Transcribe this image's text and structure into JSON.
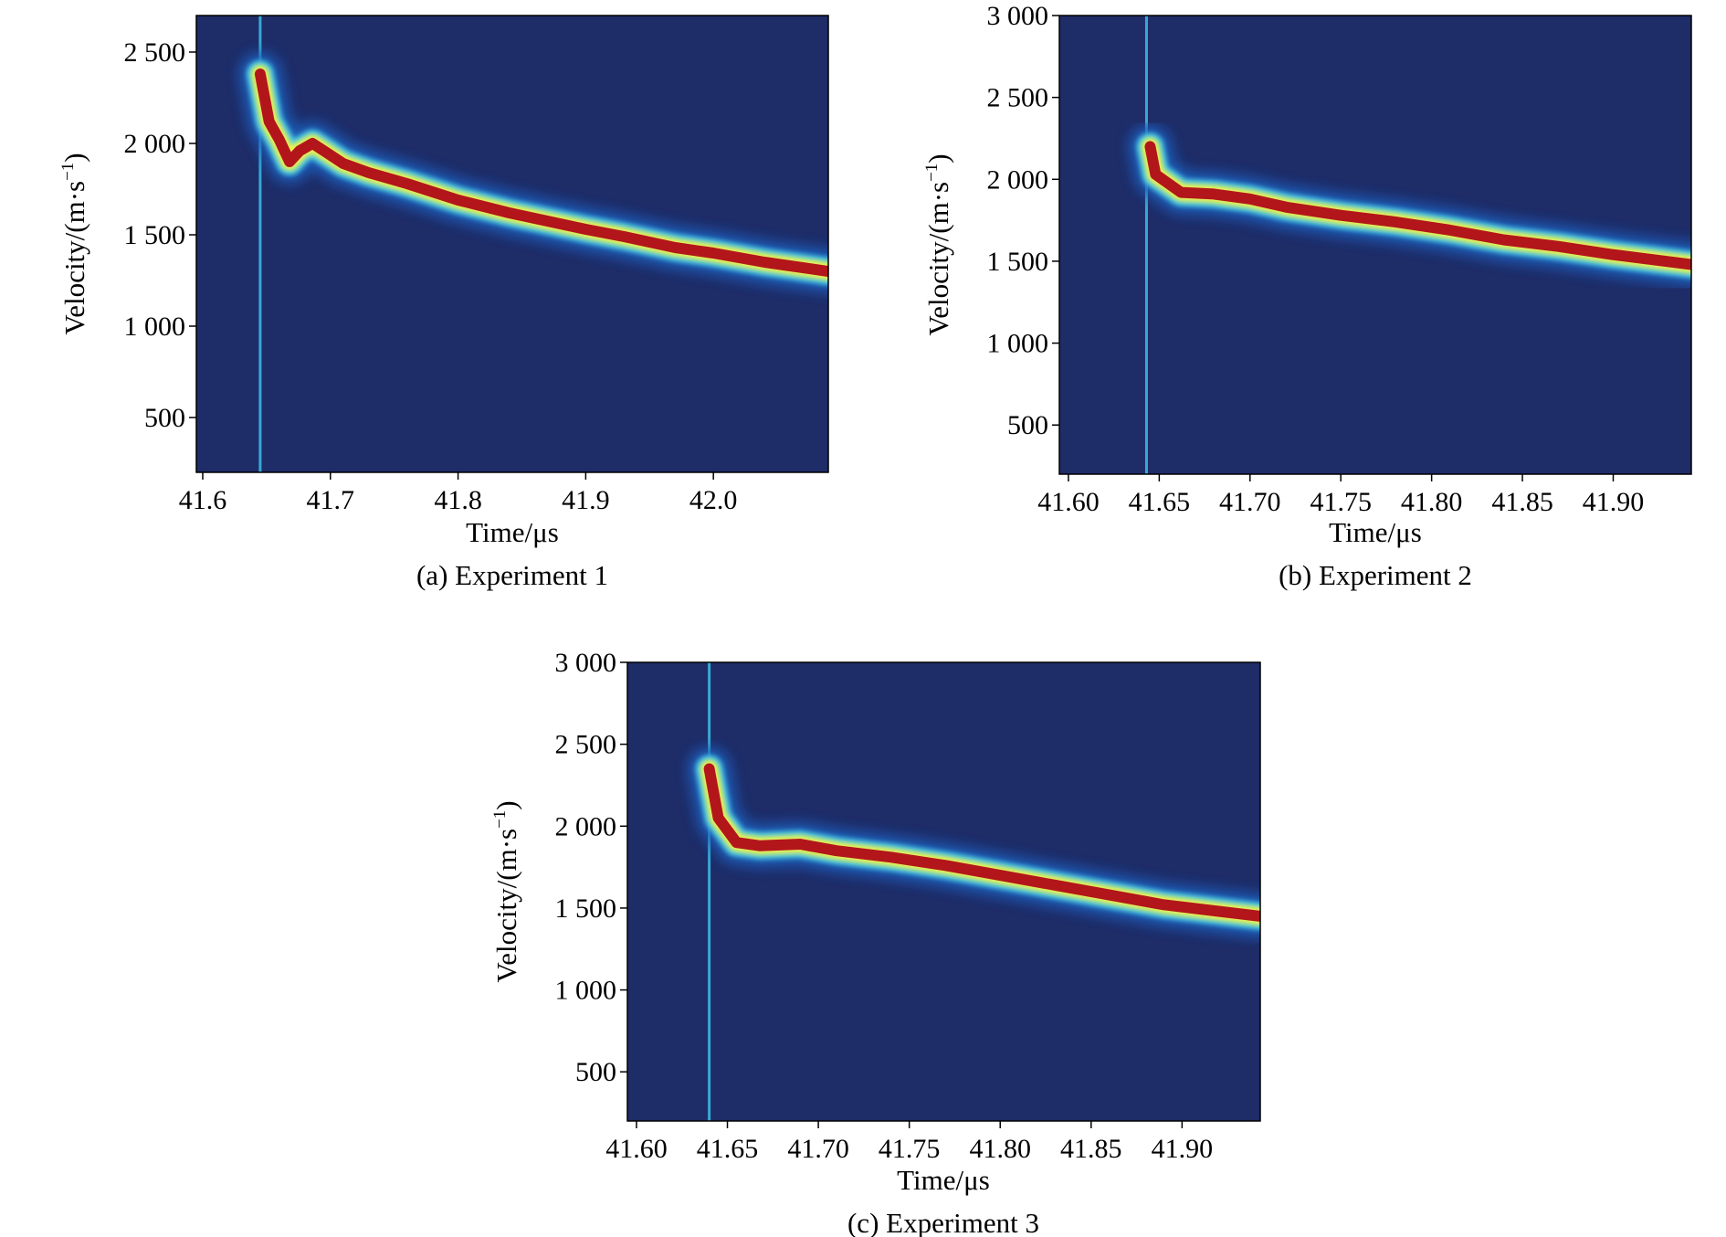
{
  "chart_data": [
    {
      "type": "heatmap",
      "caption": "(a) Experiment 1",
      "xlabel": "Time/μs",
      "ylabel_main": "Velocity/(m·s",
      "ylabel_sup": "−1",
      "ylabel_close": ")",
      "xlim": [
        41.595,
        42.09
      ],
      "ylim": [
        200,
        2700
      ],
      "xticks": [
        41.6,
        41.7,
        41.8,
        41.9,
        42.0
      ],
      "xtick_labels": [
        "41.6",
        "41.7",
        "41.8",
        "41.9",
        "42.0"
      ],
      "yticks": [
        500,
        1000,
        1500,
        2000,
        2500
      ],
      "ytick_labels": [
        "500",
        "1 000",
        "1 500",
        "2 000",
        "2 500"
      ],
      "colormap": [
        "#1e2c68",
        "#1f5bb8",
        "#3fc7ee",
        "#f2f24a",
        "#b2161b"
      ],
      "ridge": [
        [
          41.645,
          2380
        ],
        [
          41.652,
          2120
        ],
        [
          41.66,
          2020
        ],
        [
          41.668,
          1900
        ],
        [
          41.676,
          1960
        ],
        [
          41.686,
          2000
        ],
        [
          41.697,
          1950
        ],
        [
          41.71,
          1890
        ],
        [
          41.73,
          1840
        ],
        [
          41.76,
          1780
        ],
        [
          41.8,
          1690
        ],
        [
          41.84,
          1620
        ],
        [
          41.88,
          1560
        ],
        [
          41.9,
          1530
        ],
        [
          41.93,
          1490
        ],
        [
          41.97,
          1430
        ],
        [
          42.0,
          1400
        ],
        [
          42.04,
          1350
        ],
        [
          42.09,
          1300
        ]
      ],
      "streak": {
        "x": 41.645,
        "v_from": 200,
        "v_to": 2700
      }
    },
    {
      "type": "heatmap",
      "caption": "(b) Experiment 2",
      "xlabel": "Time/μs",
      "ylabel_main": "Velocity/(m·s",
      "ylabel_sup": "−1",
      "ylabel_close": ")",
      "xlim": [
        41.595,
        41.943
      ],
      "ylim": [
        200,
        3000
      ],
      "xticks": [
        41.6,
        41.65,
        41.7,
        41.75,
        41.8,
        41.85,
        41.9
      ],
      "xtick_labels": [
        "41.60",
        "41.65",
        "41.70",
        "41.75",
        "41.80",
        "41.85",
        "41.90"
      ],
      "yticks": [
        500,
        1000,
        1500,
        2000,
        2500,
        3000
      ],
      "ytick_labels": [
        "500",
        "1 000",
        "1 500",
        "2 000",
        "2 500",
        "3 000"
      ],
      "colormap": [
        "#1e2c68",
        "#1f5bb8",
        "#3fc7ee",
        "#f2f24a",
        "#b2161b"
      ],
      "ridge": [
        [
          41.645,
          2200
        ],
        [
          41.648,
          2030
        ],
        [
          41.662,
          1920
        ],
        [
          41.68,
          1910
        ],
        [
          41.7,
          1880
        ],
        [
          41.72,
          1830
        ],
        [
          41.75,
          1780
        ],
        [
          41.78,
          1740
        ],
        [
          41.81,
          1690
        ],
        [
          41.84,
          1630
        ],
        [
          41.87,
          1590
        ],
        [
          41.9,
          1540
        ],
        [
          41.943,
          1480
        ]
      ],
      "streak": {
        "x": 41.643,
        "v_from": 200,
        "v_to": 3000
      }
    },
    {
      "type": "heatmap",
      "caption": "(c) Experiment 3",
      "xlabel": "Time/μs",
      "ylabel_main": "Velocity/(m·s",
      "ylabel_sup": "−1",
      "ylabel_close": ")",
      "xlim": [
        41.595,
        41.943
      ],
      "ylim": [
        200,
        3000
      ],
      "xticks": [
        41.6,
        41.65,
        41.7,
        41.75,
        41.8,
        41.85,
        41.9
      ],
      "xtick_labels": [
        "41.60",
        "41.65",
        "41.70",
        "41.75",
        "41.80",
        "41.85",
        "41.90"
      ],
      "yticks": [
        500,
        1000,
        1500,
        2000,
        2500,
        3000
      ],
      "ytick_labels": [
        "500",
        "1 000",
        "1 500",
        "2 000",
        "2 500",
        "3 000"
      ],
      "colormap": [
        "#1e2c68",
        "#1f5bb8",
        "#3fc7ee",
        "#f2f24a",
        "#b2161b"
      ],
      "ridge": [
        [
          41.64,
          2350
        ],
        [
          41.645,
          2050
        ],
        [
          41.655,
          1900
        ],
        [
          41.668,
          1880
        ],
        [
          41.69,
          1890
        ],
        [
          41.71,
          1850
        ],
        [
          41.74,
          1810
        ],
        [
          41.77,
          1760
        ],
        [
          41.8,
          1700
        ],
        [
          41.83,
          1640
        ],
        [
          41.86,
          1580
        ],
        [
          41.89,
          1520
        ],
        [
          41.92,
          1480
        ],
        [
          41.943,
          1450
        ]
      ],
      "streak": {
        "x": 41.64,
        "v_from": 200,
        "v_to": 3000
      }
    }
  ]
}
